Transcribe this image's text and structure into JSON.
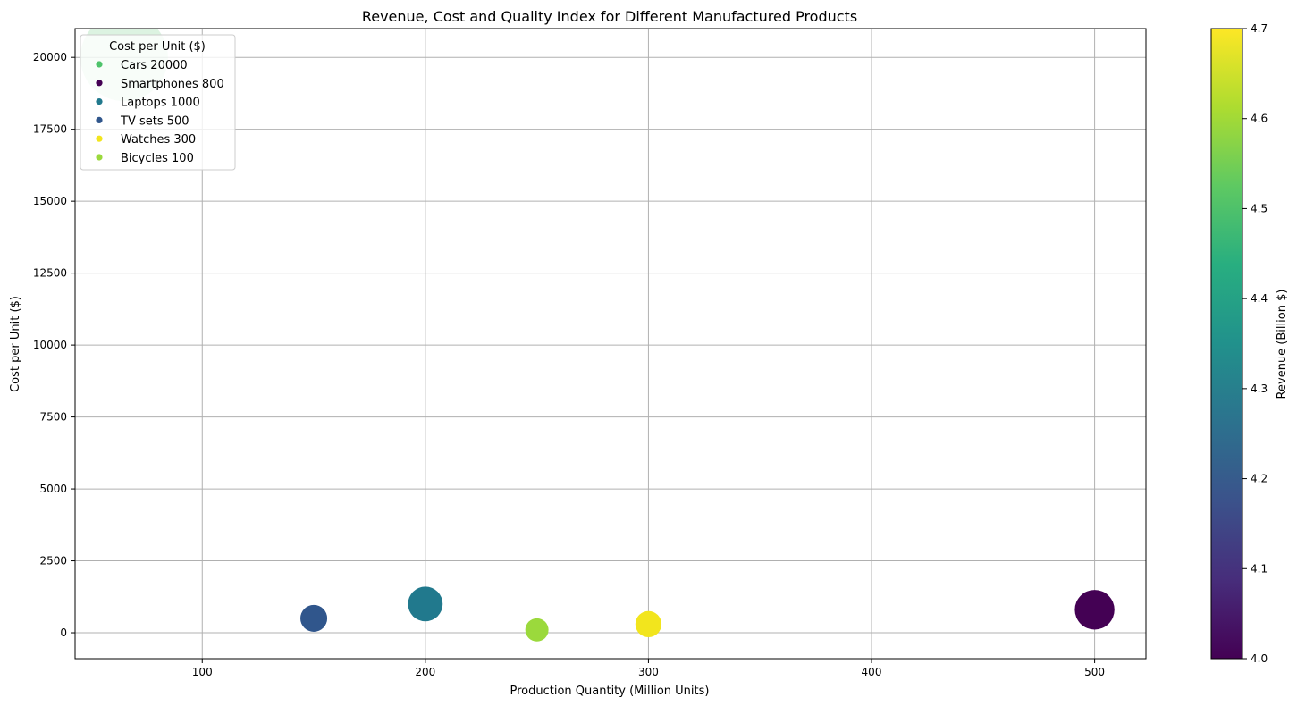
{
  "chart_data": {
    "type": "scatter",
    "title": "Revenue, Cost and Quality Index for Different Manufactured Products",
    "xlabel": "Production Quantity (Million Units)",
    "ylabel": "Cost per Unit ($)",
    "xlim": [
      43,
      523
    ],
    "ylim": [
      -900,
      21000
    ],
    "xticks": [
      100,
      200,
      300,
      400,
      500
    ],
    "yticks": [
      0,
      2500,
      5000,
      7500,
      10000,
      12500,
      15000,
      17500,
      20000
    ],
    "grid": true,
    "legend": {
      "title": "Cost per Unit ($)",
      "placement": "top-left",
      "entries": [
        "Cars 20000",
        "Smartphones 800",
        "Laptops 1000",
        "TV sets 500",
        "Watches 300",
        "Bicycles 100"
      ]
    },
    "colorbar": {
      "label": "Revenue (Billion $)",
      "range": [
        4.0,
        4.7
      ],
      "ticks": [
        "4.0",
        "4.1",
        "4.2",
        "4.3",
        "4.4",
        "4.5",
        "4.6",
        "4.7"
      ],
      "colormap": "viridis"
    },
    "points": [
      {
        "name": "Cars",
        "x": 65,
        "y": 20000,
        "color_value": 4.5,
        "size_value": 100,
        "alpha": 0.2
      },
      {
        "name": "Smartphones",
        "x": 500,
        "y": 800,
        "color_value": 4.0,
        "size_value": 20.5,
        "alpha": 1
      },
      {
        "name": "Laptops",
        "x": 200,
        "y": 1000,
        "color_value": 4.3,
        "size_value": 15.7,
        "alpha": 1
      },
      {
        "name": "TV sets",
        "x": 150,
        "y": 500,
        "color_value": 4.2,
        "size_value": 9.4,
        "alpha": 1
      },
      {
        "name": "Watches",
        "x": 300,
        "y": 300,
        "color_value": 4.7,
        "size_value": 8.9,
        "alpha": 1
      },
      {
        "name": "Bicycles",
        "x": 250,
        "y": 100,
        "color_value": 4.6,
        "size_value": 7.0,
        "alpha": 1
      }
    ],
    "colors": {
      "Cars": "#4ec36b",
      "Smartphones": "#440154",
      "Laptops": "#21798d",
      "TV sets": "#30568c",
      "Watches": "#f2e51d",
      "Bicycles": "#9bd93c"
    }
  }
}
